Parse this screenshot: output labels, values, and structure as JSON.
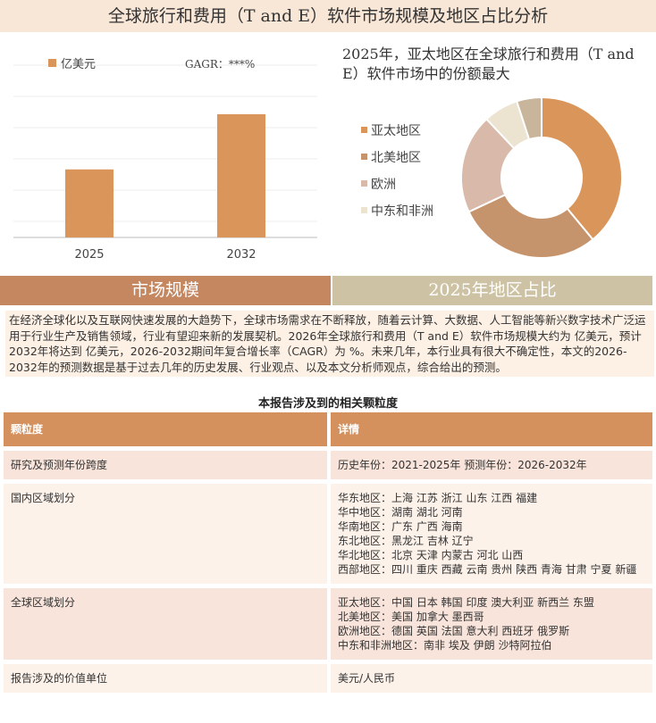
{
  "title": "全球旅行和费用（T and E）软件市场规模及地区占比分析",
  "chart_data": [
    {
      "type": "bar",
      "categories": [
        "2025",
        "2032"
      ],
      "series": [
        {
          "name": "亿美元",
          "color": "#d9955a",
          "values": [
            37,
            67
          ]
        }
      ],
      "annotation": "GAGR：***%",
      "ylim": [
        0,
        100
      ],
      "grid": true
    },
    {
      "type": "pie",
      "title": "2025年，亚太地区在全球旅行和费用（T and E）软件市场中的份额最大",
      "categories": [
        "亚太地区",
        "北美地区",
        "欧洲",
        "中东和非洲",
        null
      ],
      "values": [
        39,
        29,
        20,
        7,
        5
      ],
      "colors": [
        "#d9955a",
        "#c6946c",
        "#d9b9aa",
        "#ece3d1",
        "#c9b59b"
      ]
    }
  ],
  "tabs": [
    "市场规模",
    "2025年地区占比"
  ],
  "summary": "在经济全球化以及互联网快速发展的大趋势下，全球市场需求在不断释放，随着云计算、大数据、人工智能等新兴数字技术广泛运用于行业生产及销售领域，行业有望迎来新的发展契机。2026年全球旅行和费用（T and E）软件市场规模大约为 亿美元，预计2032年将达到 亿美元，2026-2032期间年复合增长率（CAGR）为 %。未来几年，本行业具有很大不确定性，本文的2026-2032年的预测数据是基于过去几年的历史发展、行业观点、以及本文分析师观点，综合给出的预测。",
  "table": {
    "title": "本报告涉及到的相关颗粒度",
    "header": [
      "颗粒度",
      "详情"
    ],
    "rows": [
      [
        "研究及预测年份跨度",
        [
          "历史年份：2021-2025年 预测年份：2026-2032年"
        ]
      ],
      [
        "国内区域划分",
        [
          "华东地区：上海 江苏 浙江 山东 江西 福建",
          "华中地区：湖南 湖北 河南",
          "华南地区：广东 广西 海南",
          "东北地区：黑龙江 吉林 辽宁",
          "华北地区：北京 天津 内蒙古 河北 山西",
          "西部地区：四川 重庆 西藏 云南 贵州 陕西 青海 甘肃 宁夏 新疆"
        ]
      ],
      [
        "全球区域划分",
        [
          "亚太地区：中国 日本 韩国 印度 澳大利亚 新西兰 东盟",
          "北美地区：美国 加拿大 墨西哥",
          "欧洲地区：德国 英国 法国 意大利 西班牙 俄罗斯",
          "中东和非洲地区：南非 埃及 伊朗 沙特阿拉伯"
        ]
      ],
      [
        "报告涉及的价值单位",
        [
          "美元/人民币"
        ]
      ]
    ]
  }
}
